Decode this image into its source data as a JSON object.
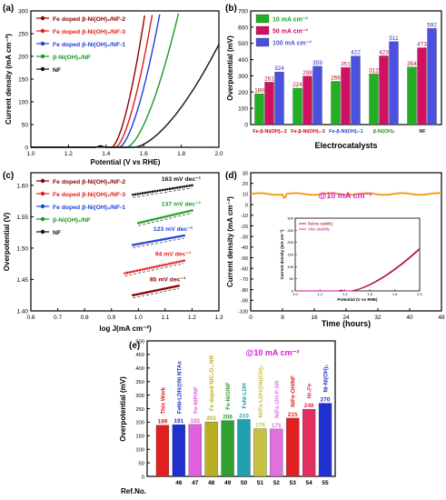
{
  "chart_data": [
    {
      "panel": "(a)",
      "type": "line",
      "xlabel": "Potential (V vs RHE)",
      "ylabel": "Current density (mA cm⁻²)",
      "xlim": [
        1.0,
        2.0
      ],
      "ylim": [
        0,
        300
      ],
      "xticks": [
        "1.0",
        "1.2",
        "1.4",
        "1.6",
        "1.8",
        "2.0"
      ],
      "yticks": [
        "0",
        "50",
        "100",
        "150",
        "200",
        "250",
        "300"
      ],
      "legend_position": "top-left",
      "series": [
        {
          "name": "Fe doped β-Ni(OH)₂/NF-2",
          "color": "#8b0000",
          "onset": 1.43,
          "v100": 1.52
        },
        {
          "name": "Fe doped β-Ni(OH)₂/NF-3",
          "color": "#e41a1c",
          "onset": 1.45,
          "v100": 1.55
        },
        {
          "name": "Fe doped β-Ni(OH)₂/NF-1",
          "color": "#1f3fd6",
          "onset": 1.47,
          "v100": 1.58
        },
        {
          "name": "β-Ni(OH)₂/NF",
          "color": "#1a9a1a",
          "onset": 1.51,
          "v100": 1.65
        },
        {
          "name": "NF",
          "color": "#111111",
          "onset": 1.55,
          "v100": 1.82
        }
      ]
    },
    {
      "panel": "(b)",
      "type": "bar",
      "xlabel": "Electrocatalysts",
      "ylabel": "Overpotential (mV)",
      "ylim": [
        0,
        700
      ],
      "yticks": [
        "0",
        "100",
        "200",
        "300",
        "400",
        "500",
        "600",
        "700"
      ],
      "categories": [
        "Fe-β-Ni(OH)₂-2",
        "Fe-β-Ni(OH)₂-3",
        "Fe-β-Ni(OH)₂-1",
        "β-Ni(OH)₂",
        "NF"
      ],
      "category_colors": [
        "#d00000",
        "#d00000",
        "#1a3fd0",
        "#1a9a1a",
        "#222222"
      ],
      "series": [
        {
          "name": "10 mA cm⁻²",
          "color": "#22b022",
          "values": [
            189,
            224,
            266,
            312,
            354
          ]
        },
        {
          "name": "50 mA cm⁻²",
          "color": "#d01060",
          "values": [
            261,
            298,
            351,
            423,
            473
          ]
        },
        {
          "name": "100 mA cm⁻²",
          "color": "#4a50e0",
          "values": [
            324,
            359,
            422,
            511,
            592
          ]
        }
      ],
      "legend_position": "top-left"
    },
    {
      "panel": "(c)",
      "type": "scatter",
      "xlabel": "log J(mA cm⁻²)",
      "ylabel": "Overpotential (V)",
      "xlim": [
        0.6,
        1.3
      ],
      "ylim": [
        1.4,
        1.62
      ],
      "xticks": [
        "0.6",
        "0.7",
        "0.8",
        "0.9",
        "1.0",
        "1.1",
        "1.2",
        "1.3"
      ],
      "yticks": [
        "1.40",
        "1.45",
        "1.50",
        "1.55",
        "1.60"
      ],
      "legend_position": "top-left",
      "series": [
        {
          "name": "Fe doped β-Ni(OH)₂/NF-2",
          "color": "#8b0000",
          "x": [
            0.98,
            1.15
          ],
          "y": [
            1.425,
            1.44
          ],
          "tafel": "85 mV dec⁻¹"
        },
        {
          "name": "Fe doped β-Ni(OH)₂/NF-3",
          "color": "#e41a1c",
          "x": [
            0.95,
            1.17
          ],
          "y": [
            1.46,
            1.48
          ],
          "tafel": "94 mV dec⁻¹"
        },
        {
          "name": "Fe doped β-Ni(OH)₂/NF-1",
          "color": "#1f3fd6",
          "x": [
            0.98,
            1.17
          ],
          "y": [
            1.505,
            1.52
          ],
          "tafel": "123 mV dec⁻¹"
        },
        {
          "name": "β-Ni(OH)₂/NF",
          "color": "#1a9a1a",
          "x": [
            1.0,
            1.2
          ],
          "y": [
            1.54,
            1.56
          ],
          "tafel": "137 mV dec⁻¹"
        },
        {
          "name": "NF",
          "color": "#111111",
          "x": [
            0.98,
            1.2
          ],
          "y": [
            1.585,
            1.6
          ],
          "tafel": "163 mV dec⁻¹"
        }
      ]
    },
    {
      "panel": "(d)",
      "type": "line",
      "xlabel": "Time (hours)",
      "ylabel": "Current density (mA cm⁻²)",
      "xlim": [
        0,
        48
      ],
      "ylim": [
        -100,
        30
      ],
      "xticks": [
        "0",
        "8",
        "16",
        "24",
        "32",
        "40",
        "48"
      ],
      "yticks": [
        "-100",
        "-90",
        "-80",
        "-70",
        "-60",
        "-50",
        "-40",
        "-30",
        "-20",
        "-10",
        "0",
        "10",
        "20",
        "30"
      ],
      "annotation": "@10 mA cm⁻²",
      "series": [
        {
          "name": "",
          "color": "#f0a020",
          "level": 10
        }
      ],
      "inset": {
        "xlabel": "Potential (V vs RHE)",
        "ylabel": "Current density (mA cm⁻²)",
        "xlim": [
          1.0,
          2.0
        ],
        "ylim": [
          0,
          300
        ],
        "xticks": [
          "1.0",
          "1.2",
          "1.4",
          "1.6",
          "1.8",
          "2.0"
        ],
        "yticks": [
          "0",
          "50",
          "100",
          "150",
          "200",
          "250",
          "300"
        ],
        "legend": [
          "Before stability",
          "After stability"
        ],
        "colors": [
          "#8b0000",
          "#d01080"
        ]
      }
    },
    {
      "panel": "(e)",
      "type": "bar",
      "ylabel": "Overpotential (mV)",
      "xlabel_prefix": "Ref.No.",
      "annotation": "@10 mA cm⁻²",
      "ylim": [
        0,
        500
      ],
      "yticks": [
        "0",
        "50",
        "100",
        "150",
        "200",
        "250",
        "300",
        "350",
        "400",
        "450",
        "500"
      ],
      "categories": [
        "This Work",
        "46",
        "47",
        "48",
        "49",
        "50",
        "51",
        "52",
        "53",
        "54",
        "55"
      ],
      "labels": [
        "This Work",
        "FeNi-LDH@Ni NTAs",
        "Fe-NiP/NF",
        "Fe doped NiC₂O₄ NR",
        "Fe-NiO/NF",
        "FeNi-LDH",
        "Ni/Fe-LDH@Ni(OH)₂",
        "NiFe-OH-F-SR",
        "NiFe-OH/NF",
        "Ni₃Fe",
        "Ni-Ni(OH)₂"
      ],
      "values": [
        189,
        191,
        192,
        201,
        206,
        210,
        176,
        175,
        215,
        248,
        270
      ],
      "colors": [
        "#e02020",
        "#2030d0",
        "#e060e0",
        "#b8b020",
        "#30a030",
        "#20a0b0",
        "#c8c040",
        "#e070e0",
        "#e02020",
        "#e03060",
        "#2030d0"
      ]
    }
  ]
}
